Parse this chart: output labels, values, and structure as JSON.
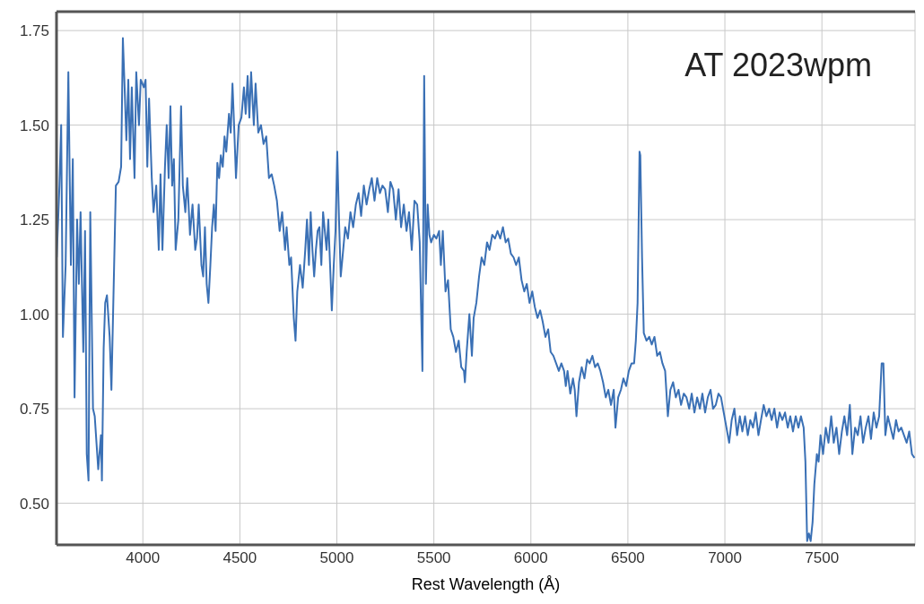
{
  "chart_data": {
    "type": "line",
    "xlabel": "Rest Wavelength (Å)",
    "annotations": [
      "AT 2023wpm"
    ],
    "xlim": [
      3555,
      7980
    ],
    "xticks": [
      4000,
      4500,
      5000,
      5500,
      6000,
      6500,
      7000,
      7500
    ],
    "ylim": [
      0.39,
      1.8
    ],
    "yticks": [
      {
        "value": 0.5,
        "label": "0.50"
      },
      {
        "value": 0.75,
        "label": "0.75"
      },
      {
        "value": 1.0,
        "label": "1.00"
      },
      {
        "value": 1.25,
        "label": "1.25"
      },
      {
        "value": 1.5,
        "label": "1.50"
      },
      {
        "value": 1.75,
        "label": "1.75"
      }
    ],
    "grid": true,
    "series": [
      {
        "color": "#3a70b5",
        "x": [
          3556,
          3570,
          3579,
          3588,
          3602,
          3616,
          3629,
          3639,
          3648,
          3661,
          3670,
          3679,
          3693,
          3702,
          3711,
          3720,
          3729,
          3743,
          3752,
          3761,
          3770,
          3784,
          3789,
          3798,
          3806,
          3815,
          3829,
          3838,
          3852,
          3861,
          3875,
          3888,
          3897,
          3906,
          3915,
          3925,
          3934,
          3943,
          3957,
          3966,
          3980,
          3989,
          4005,
          4014,
          4023,
          4032,
          4046,
          4055,
          4069,
          4082,
          4091,
          4101,
          4114,
          4123,
          4133,
          4142,
          4151,
          4160,
          4169,
          4183,
          4197,
          4206,
          4219,
          4229,
          4243,
          4256,
          4270,
          4279,
          4288,
          4302,
          4311,
          4320,
          4329,
          4338,
          4348,
          4357,
          4366,
          4375,
          4384,
          4393,
          4402,
          4412,
          4421,
          4430,
          4444,
          4453,
          4462,
          4471,
          4480,
          4494,
          4508,
          4521,
          4530,
          4540,
          4549,
          4558,
          4572,
          4581,
          4595,
          4609,
          4622,
          4636,
          4650,
          4664,
          4677,
          4691,
          4705,
          4718,
          4733,
          4741,
          4755,
          4764,
          4778,
          4787,
          4796,
          4810,
          4824,
          4837,
          4846,
          4856,
          4865,
          4874,
          4883,
          4892,
          4901,
          4910,
          4920,
          4929,
          4938,
          4947,
          4956,
          4965,
          4974,
          4984,
          4993,
          5002,
          5011,
          5020,
          5029,
          5043,
          5057,
          5070,
          5084,
          5098,
          5112,
          5125,
          5139,
          5153,
          5167,
          5180,
          5194,
          5208,
          5222,
          5235,
          5249,
          5263,
          5276,
          5290,
          5304,
          5318,
          5331,
          5345,
          5359,
          5372,
          5386,
          5400,
          5414,
          5427,
          5441,
          5450,
          5459,
          5468,
          5477,
          5486,
          5500,
          5513,
          5527,
          5536,
          5546,
          5560,
          5573,
          5587,
          5600,
          5614,
          5628,
          5641,
          5655,
          5660,
          5669,
          5683,
          5696,
          5705,
          5719,
          5733,
          5746,
          5760,
          5774,
          5787,
          5801,
          5815,
          5828,
          5842,
          5856,
          5870,
          5883,
          5897,
          5911,
          5924,
          5938,
          5952,
          5966,
          5979,
          5993,
          6007,
          6020,
          6034,
          6048,
          6061,
          6075,
          6089,
          6102,
          6116,
          6130,
          6144,
          6157,
          6171,
          6180,
          6189,
          6203,
          6217,
          6226,
          6235,
          6248,
          6262,
          6276,
          6290,
          6303,
          6317,
          6331,
          6345,
          6358,
          6372,
          6386,
          6399,
          6413,
          6427,
          6436,
          6450,
          6464,
          6477,
          6491,
          6505,
          6519,
          6532,
          6541,
          6550,
          6560,
          6564,
          6573,
          6582,
          6596,
          6610,
          6623,
          6637,
          6651,
          6665,
          6678,
          6692,
          6706,
          6719,
          6733,
          6747,
          6761,
          6774,
          6788,
          6802,
          6816,
          6829,
          6843,
          6857,
          6871,
          6884,
          6898,
          6912,
          6926,
          6939,
          6953,
          6967,
          6980,
          6994,
          7008,
          7022,
          7035,
          7049,
          7063,
          7077,
          7090,
          7104,
          7118,
          7131,
          7145,
          7159,
          7173,
          7186,
          7200,
          7214,
          7228,
          7241,
          7255,
          7269,
          7282,
          7296,
          7310,
          7324,
          7337,
          7351,
          7365,
          7379,
          7392,
          7406,
          7415,
          7424,
          7433,
          7442,
          7452,
          7461,
          7474,
          7483,
          7493,
          7506,
          7520,
          7534,
          7548,
          7561,
          7575,
          7589,
          7603,
          7616,
          7630,
          7644,
          7657,
          7671,
          7685,
          7699,
          7712,
          7726,
          7740,
          7753,
          7767,
          7781,
          7795,
          7808,
          7817,
          7827,
          7840,
          7854,
          7868,
          7882,
          7895,
          7909,
          7923,
          7937,
          7950,
          7964,
          7977
        ],
        "values": [
          1.15,
          1.34,
          1.5,
          0.94,
          1.13,
          1.64,
          1.13,
          1.41,
          0.78,
          1.25,
          1.08,
          1.27,
          0.9,
          1.22,
          0.63,
          0.56,
          1.27,
          0.75,
          0.73,
          0.66,
          0.59,
          0.68,
          0.56,
          0.91,
          1.03,
          1.05,
          0.94,
          0.8,
          1.13,
          1.34,
          1.35,
          1.39,
          1.73,
          1.6,
          1.46,
          1.62,
          1.41,
          1.6,
          1.36,
          1.64,
          1.5,
          1.62,
          1.6,
          1.62,
          1.39,
          1.57,
          1.36,
          1.27,
          1.34,
          1.17,
          1.37,
          1.17,
          1.39,
          1.5,
          1.36,
          1.55,
          1.34,
          1.41,
          1.17,
          1.25,
          1.55,
          1.34,
          1.27,
          1.36,
          1.21,
          1.29,
          1.17,
          1.2,
          1.29,
          1.13,
          1.1,
          1.23,
          1.08,
          1.03,
          1.13,
          1.23,
          1.29,
          1.22,
          1.4,
          1.36,
          1.42,
          1.39,
          1.47,
          1.43,
          1.53,
          1.48,
          1.61,
          1.49,
          1.36,
          1.5,
          1.52,
          1.6,
          1.53,
          1.63,
          1.52,
          1.64,
          1.5,
          1.61,
          1.48,
          1.5,
          1.45,
          1.47,
          1.36,
          1.37,
          1.34,
          1.3,
          1.22,
          1.27,
          1.17,
          1.23,
          1.13,
          1.15,
          0.99,
          0.93,
          1.06,
          1.13,
          1.07,
          1.17,
          1.25,
          1.13,
          1.27,
          1.17,
          1.1,
          1.17,
          1.22,
          1.23,
          1.13,
          1.27,
          1.22,
          1.17,
          1.25,
          1.13,
          1.01,
          1.13,
          1.22,
          1.43,
          1.25,
          1.1,
          1.15,
          1.23,
          1.2,
          1.27,
          1.23,
          1.29,
          1.32,
          1.26,
          1.34,
          1.29,
          1.33,
          1.36,
          1.3,
          1.36,
          1.32,
          1.34,
          1.33,
          1.27,
          1.35,
          1.33,
          1.25,
          1.33,
          1.23,
          1.29,
          1.22,
          1.27,
          1.17,
          1.3,
          1.29,
          1.19,
          0.85,
          1.63,
          1.08,
          1.29,
          1.21,
          1.19,
          1.21,
          1.2,
          1.22,
          1.13,
          1.22,
          1.06,
          1.09,
          0.96,
          0.94,
          0.9,
          0.93,
          0.86,
          0.85,
          0.82,
          0.9,
          1.0,
          0.89,
          0.99,
          1.03,
          1.1,
          1.15,
          1.13,
          1.19,
          1.17,
          1.21,
          1.2,
          1.22,
          1.2,
          1.23,
          1.19,
          1.2,
          1.16,
          1.15,
          1.13,
          1.15,
          1.09,
          1.06,
          1.08,
          1.03,
          1.06,
          1.02,
          0.99,
          1.01,
          0.98,
          0.94,
          0.96,
          0.9,
          0.89,
          0.87,
          0.85,
          0.87,
          0.85,
          0.81,
          0.85,
          0.79,
          0.83,
          0.8,
          0.73,
          0.82,
          0.86,
          0.83,
          0.88,
          0.87,
          0.89,
          0.86,
          0.87,
          0.85,
          0.82,
          0.78,
          0.8,
          0.76,
          0.8,
          0.7,
          0.78,
          0.8,
          0.83,
          0.81,
          0.85,
          0.87,
          0.87,
          0.93,
          1.03,
          1.43,
          1.42,
          1.15,
          0.95,
          0.93,
          0.94,
          0.92,
          0.94,
          0.89,
          0.9,
          0.87,
          0.85,
          0.73,
          0.8,
          0.82,
          0.78,
          0.8,
          0.76,
          0.79,
          0.78,
          0.75,
          0.79,
          0.74,
          0.78,
          0.75,
          0.79,
          0.74,
          0.78,
          0.8,
          0.75,
          0.76,
          0.79,
          0.78,
          0.74,
          0.7,
          0.66,
          0.72,
          0.75,
          0.68,
          0.73,
          0.69,
          0.73,
          0.68,
          0.72,
          0.7,
          0.74,
          0.68,
          0.72,
          0.76,
          0.73,
          0.75,
          0.72,
          0.75,
          0.7,
          0.74,
          0.72,
          0.74,
          0.7,
          0.73,
          0.69,
          0.73,
          0.7,
          0.73,
          0.7,
          0.61,
          0.4,
          0.42,
          0.4,
          0.45,
          0.55,
          0.63,
          0.61,
          0.68,
          0.63,
          0.7,
          0.66,
          0.73,
          0.66,
          0.7,
          0.63,
          0.69,
          0.73,
          0.68,
          0.76,
          0.63,
          0.7,
          0.68,
          0.73,
          0.66,
          0.7,
          0.73,
          0.67,
          0.74,
          0.7,
          0.73,
          0.87,
          0.87,
          0.68,
          0.73,
          0.7,
          0.67,
          0.72,
          0.69,
          0.7,
          0.68,
          0.66,
          0.69,
          0.63,
          0.62
        ]
      }
    ]
  }
}
